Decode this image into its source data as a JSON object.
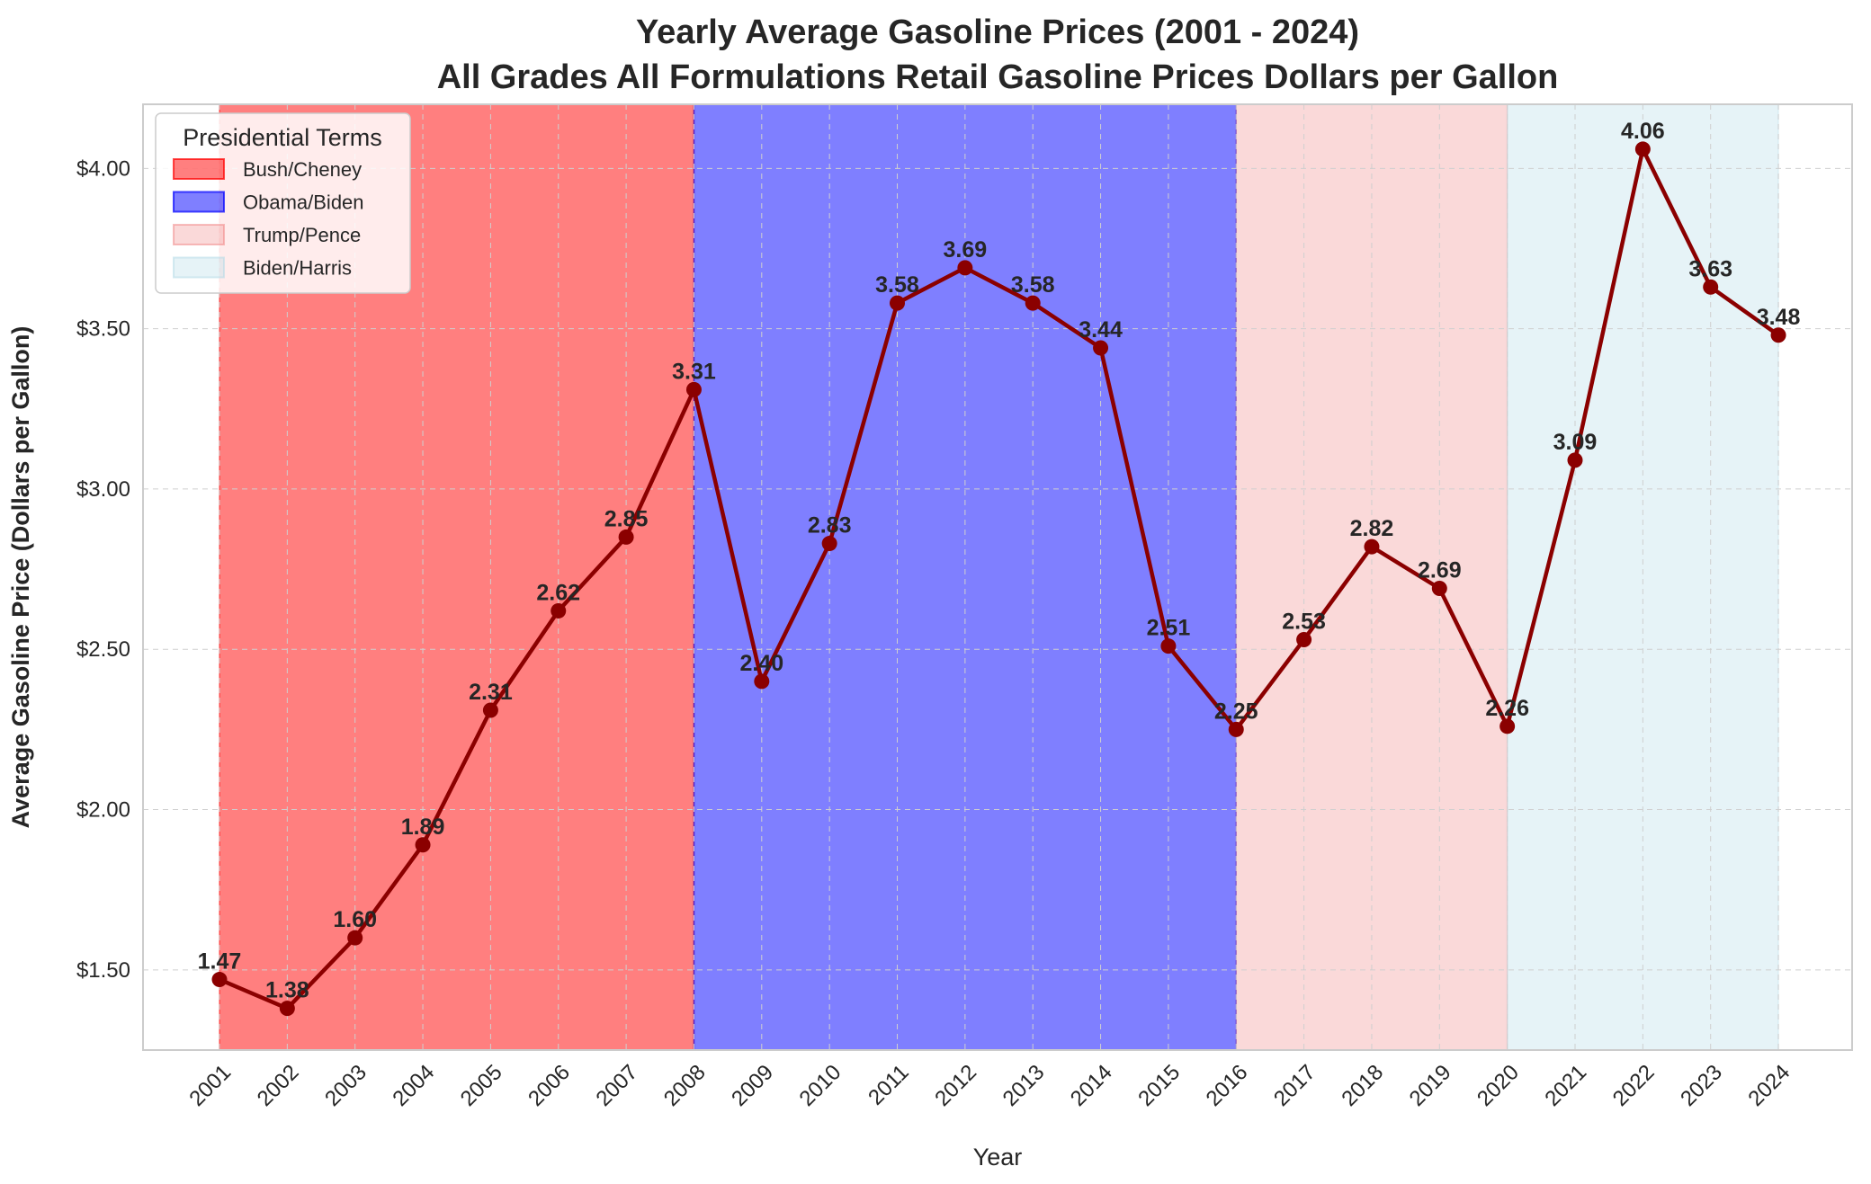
{
  "chart_data": {
    "type": "line",
    "title": "Yearly Average Gasoline Prices (2001 - 2024)",
    "subtitle": "All Grades All Formulations Retail Gasoline Prices Dollars per Gallon",
    "xlabel": "Year",
    "ylabel": "Average Gasoline Price (Dollars per Gallon)",
    "ylim": [
      1.25,
      4.2
    ],
    "yticks": [
      1.5,
      2.0,
      2.5,
      3.0,
      3.5,
      4.0
    ],
    "ytick_labels": [
      "$1.50",
      "$2.00",
      "$2.50",
      "$3.00",
      "$3.50",
      "$4.00"
    ],
    "grid": true,
    "line_color": "#8b0000",
    "categories": [
      "2001",
      "2002",
      "2003",
      "2004",
      "2005",
      "2006",
      "2007",
      "2008",
      "2009",
      "2010",
      "2011",
      "2012",
      "2013",
      "2014",
      "2015",
      "2016",
      "2017",
      "2018",
      "2019",
      "2020",
      "2021",
      "2022",
      "2023",
      "2024"
    ],
    "values": [
      1.47,
      1.38,
      1.6,
      1.89,
      2.31,
      2.62,
      2.85,
      3.31,
      2.4,
      2.83,
      3.58,
      3.69,
      3.58,
      3.44,
      2.51,
      2.25,
      2.53,
      2.82,
      2.69,
      2.26,
      3.09,
      4.06,
      3.63,
      3.48
    ],
    "data_labels": [
      "1.47",
      "1.38",
      "1.60",
      "1.89",
      "2.31",
      "2.62",
      "2.85",
      "3.31",
      "2.40",
      "2.83",
      "3.58",
      "3.69",
      "3.58",
      "3.44",
      "2.51",
      "2.25",
      "2.53",
      "2.82",
      "2.69",
      "2.26",
      "3.09",
      "4.06",
      "3.63",
      "3.48"
    ],
    "terms": [
      {
        "name": "Bush/Cheney",
        "start": 2001,
        "end": 2008,
        "color": "#ff0000",
        "opacity": 0.5
      },
      {
        "name": "Obama/Biden",
        "start": 2008,
        "end": 2016,
        "color": "#0000ff",
        "opacity": 0.5
      },
      {
        "name": "Trump/Pence",
        "start": 2016,
        "end": 2020,
        "color": "#f08080",
        "opacity": 0.3
      },
      {
        "name": "Biden/Harris",
        "start": 2020,
        "end": 2024,
        "color": "#add8e6",
        "opacity": 0.3
      }
    ],
    "legend": {
      "title": "Presidential Terms",
      "position": "top-left"
    }
  }
}
